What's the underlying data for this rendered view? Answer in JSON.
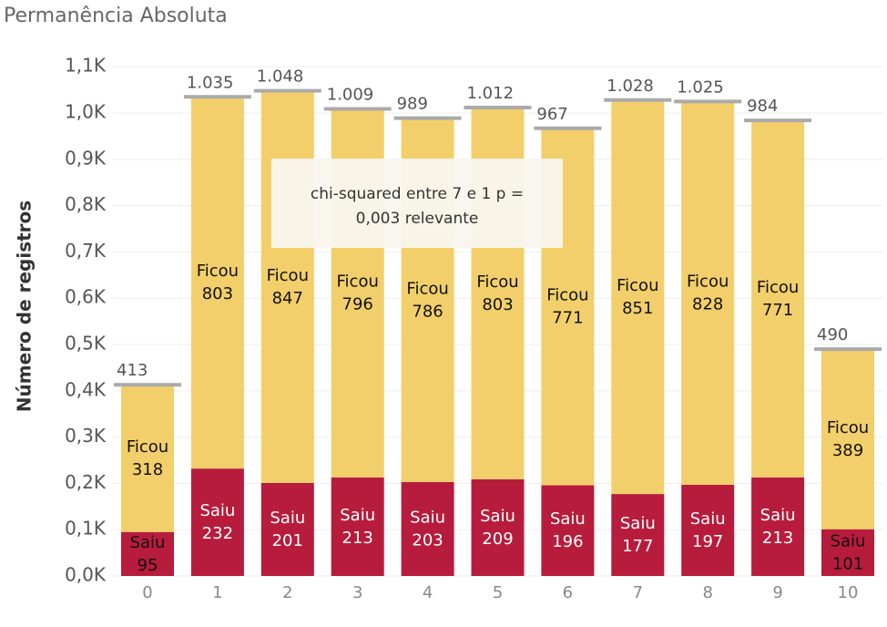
{
  "chart_data": {
    "type": "stacked_bar",
    "title": "Permanência Absoluta",
    "y_label": "Número de registros",
    "categories": [
      "0",
      "1",
      "2",
      "3",
      "4",
      "5",
      "6",
      "7",
      "8",
      "9",
      "10"
    ],
    "series": [
      {
        "name": "Saiu",
        "color": "#b71c3c",
        "values": [
          95,
          232,
          201,
          213,
          203,
          209,
          196,
          177,
          197,
          213,
          101
        ]
      },
      {
        "name": "Ficou",
        "color": "#f2cf6a",
        "values": [
          318,
          803,
          847,
          796,
          786,
          803,
          771,
          851,
          828,
          771,
          389
        ]
      }
    ],
    "totals": {
      "color": "#aaaaaa",
      "values": [
        413,
        1035,
        1048,
        1009,
        989,
        1012,
        967,
        1028,
        1025,
        984,
        490
      ],
      "value_labels": [
        "413",
        "1.035",
        "1.048",
        "1.009",
        "989",
        "1.012",
        "967",
        "1.028",
        "1.025",
        "984",
        "490"
      ]
    },
    "ylim": [
      0,
      1130
    ],
    "yticks": [
      {
        "value": 0,
        "label": "0,0K"
      },
      {
        "value": 100,
        "label": "0,1K"
      },
      {
        "value": 200,
        "label": "0,2K"
      },
      {
        "value": 300,
        "label": "0,3K"
      },
      {
        "value": 400,
        "label": "0,4K"
      },
      {
        "value": 500,
        "label": "0,5K"
      },
      {
        "value": 600,
        "label": "0,6K"
      },
      {
        "value": 700,
        "label": "0,7K"
      },
      {
        "value": 800,
        "label": "0,8K"
      },
      {
        "value": 900,
        "label": "0,9K"
      },
      {
        "value": 1000,
        "label": "1,0K"
      },
      {
        "value": 1100,
        "label": "1,1K"
      }
    ],
    "grid": true,
    "annotation": [
      "chi-squared entre 7 e 1 p =",
      "0,003 relevante"
    ]
  }
}
